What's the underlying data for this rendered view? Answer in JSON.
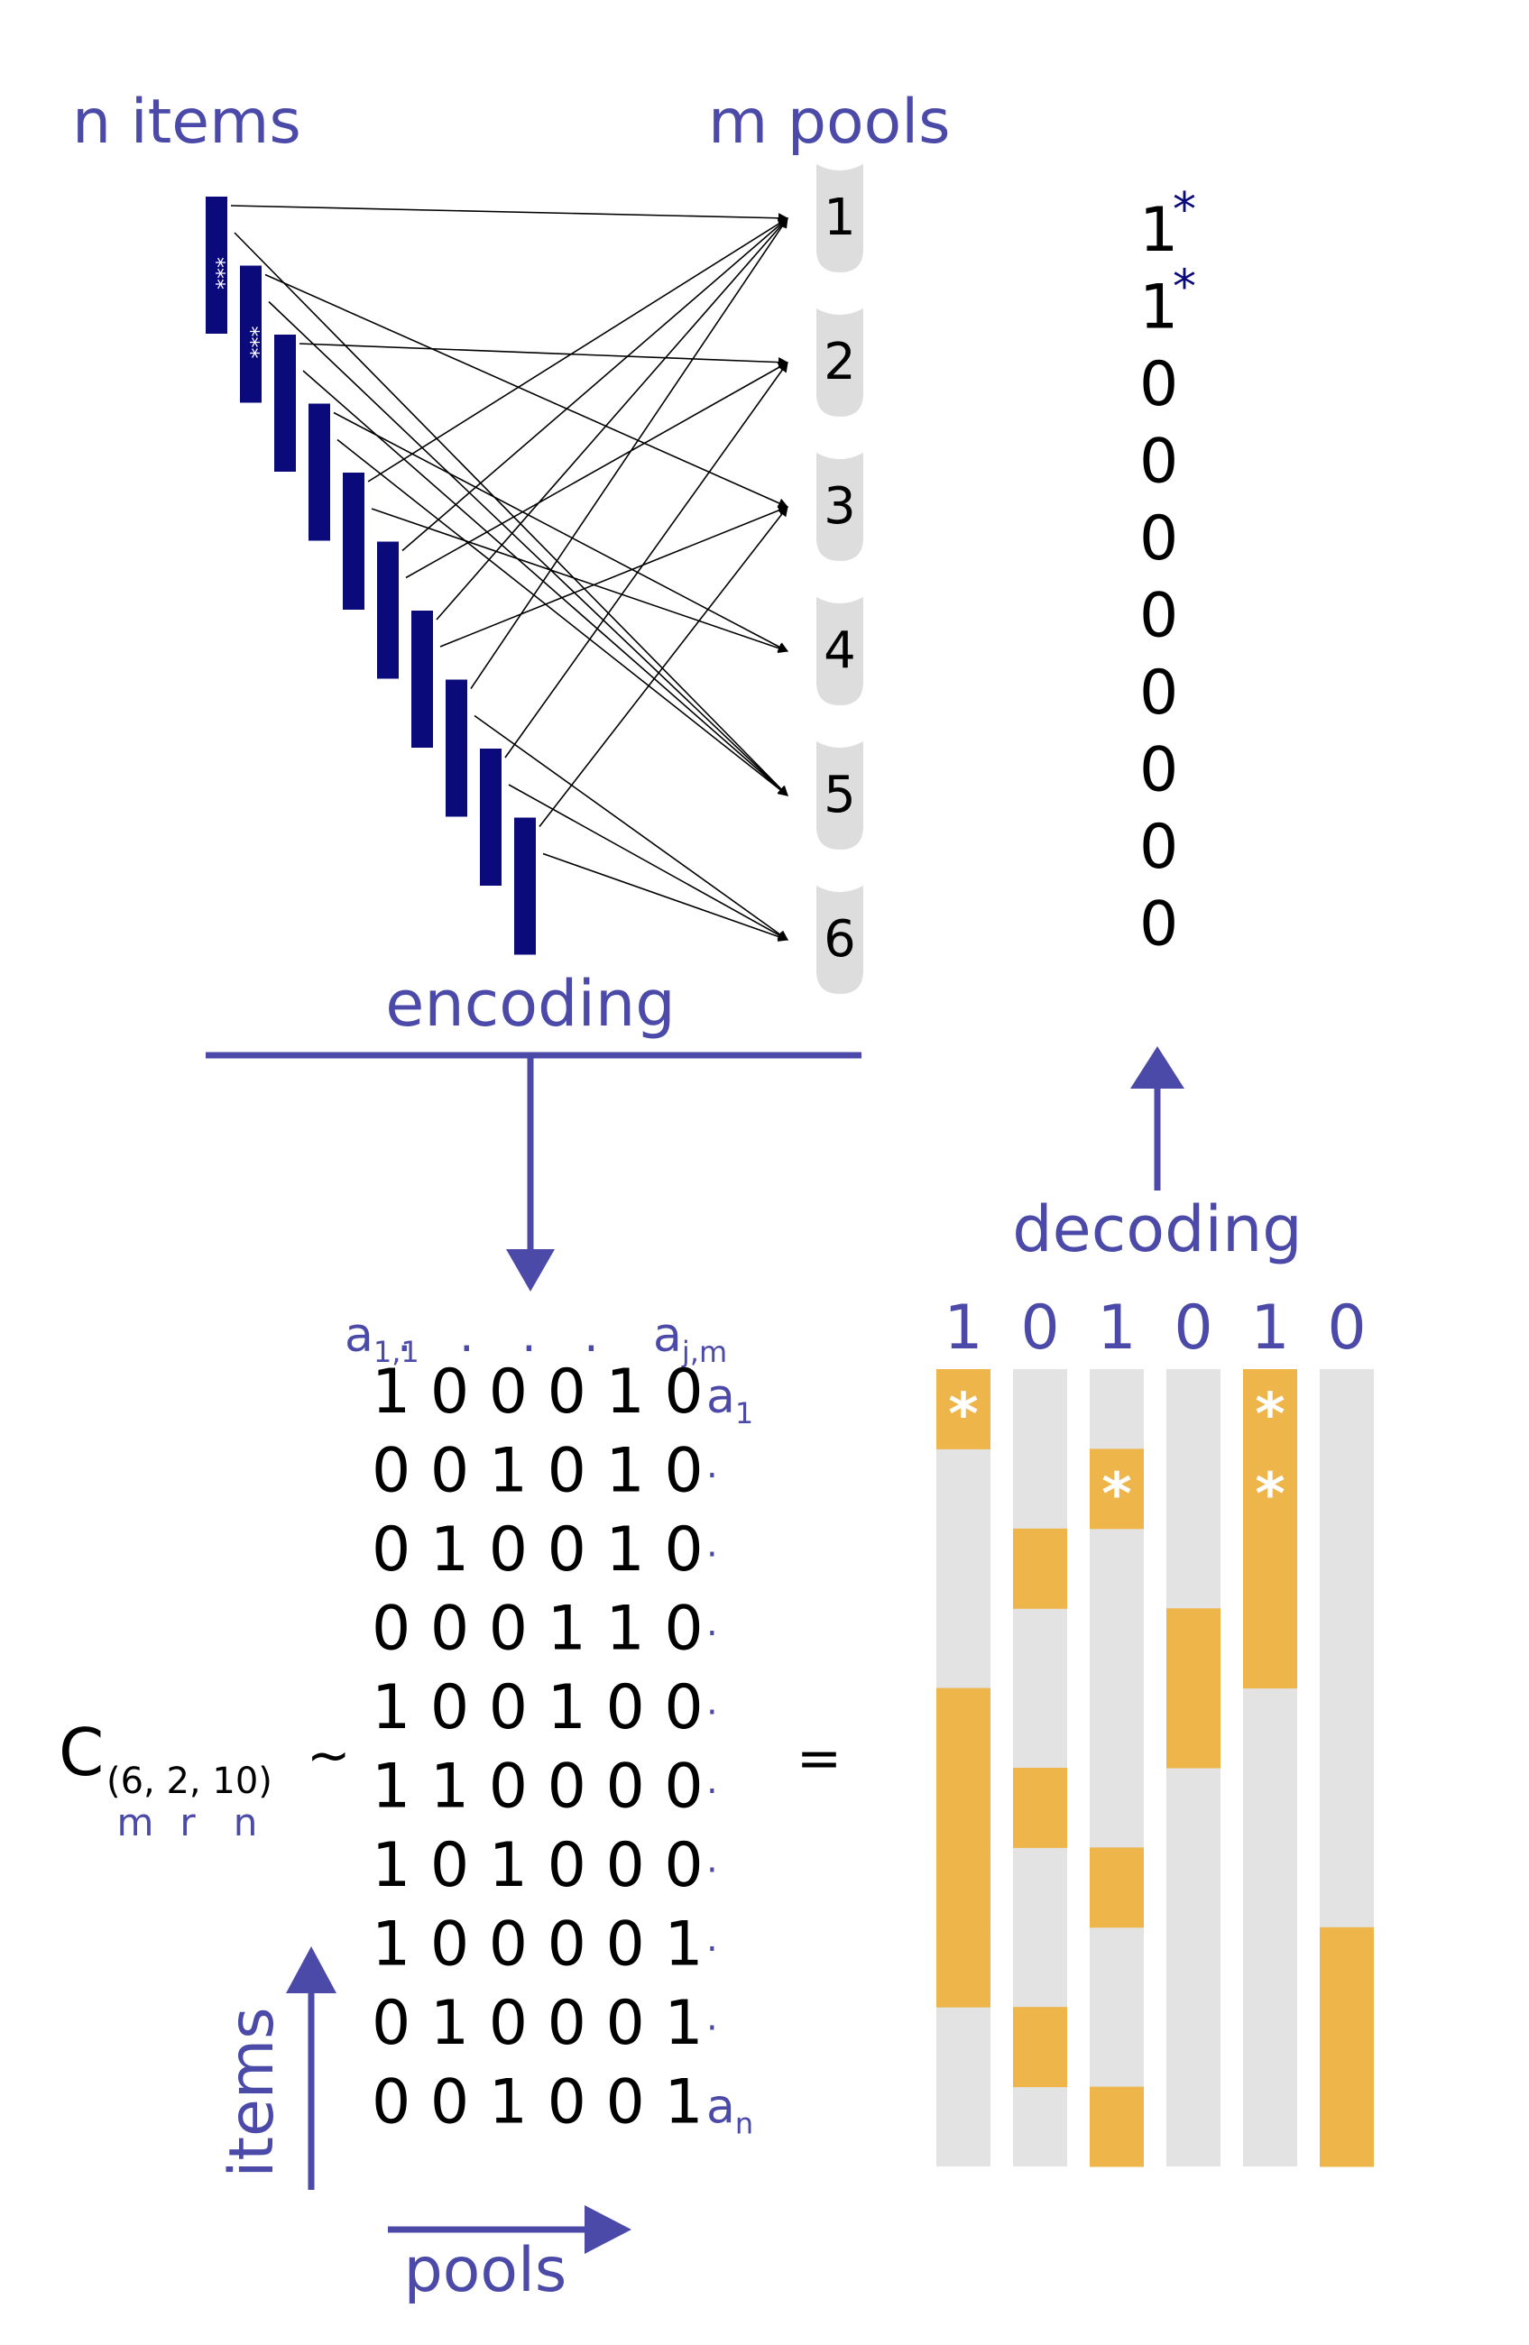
{
  "labels": {
    "n_items": "n items",
    "m_pools": "m pools",
    "encoding": "encoding",
    "decoding": "decoding",
    "items_axis": "items",
    "pools_axis": "pools",
    "equals": "="
  },
  "colors": {
    "item_bar": "#0a0a7a",
    "label": "#4b4aa8",
    "pool": "#dddddd",
    "cell_empty": "#e3e3e3",
    "cell_filled": "#eeb54a",
    "star_in_cell": "#ffffff",
    "star_in_bar": "#ffffff",
    "result_star": "#0a0a7a"
  },
  "pools": [
    "1",
    "2",
    "3",
    "4",
    "5",
    "6"
  ],
  "items_count": 10,
  "positive_item_star": "***",
  "result": [
    {
      "value": "1",
      "star": "*"
    },
    {
      "value": "1",
      "star": "*"
    },
    {
      "value": "0",
      "star": ""
    },
    {
      "value": "0",
      "star": ""
    },
    {
      "value": "0",
      "star": ""
    },
    {
      "value": "0",
      "star": ""
    },
    {
      "value": "0",
      "star": ""
    },
    {
      "value": "0",
      "star": ""
    },
    {
      "value": "0",
      "star": ""
    },
    {
      "value": "0",
      "star": ""
    }
  ],
  "matrix": {
    "header_left": "a",
    "header_left_sub": "1,1",
    "header_dots": ". . . .",
    "header_right": "a",
    "header_right_sub": "j,m",
    "rows": [
      "1 0 0 0 1 0",
      "0 0 1 0 1 0",
      "0 1 0 0 1 0",
      "0 0 0 1 1 0",
      "1 0 0 1 0 0",
      "1 1 0 0 0 0",
      "1 0 1 0 0 0",
      "1 0 0 0 0 1",
      "0 1 0 0 0 1",
      "0 0 1 0 0 1"
    ],
    "row_labels": [
      {
        "text": "a",
        "sub": "1"
      },
      {
        "text": "·",
        "sub": ""
      },
      {
        "text": "·",
        "sub": ""
      },
      {
        "text": "·",
        "sub": ""
      },
      {
        "text": "·",
        "sub": ""
      },
      {
        "text": "·",
        "sub": ""
      },
      {
        "text": "·",
        "sub": ""
      },
      {
        "text": "·",
        "sub": ""
      },
      {
        "text": "·",
        "sub": ""
      },
      {
        "text": "a",
        "sub": "n"
      }
    ]
  },
  "code": {
    "symbol": "C",
    "params": "(6, 2, 10)",
    "tilde": "~",
    "param_names": [
      "m",
      "r",
      "n"
    ]
  },
  "pool_results": [
    "1",
    "0",
    "1",
    "0",
    "1",
    "0"
  ],
  "cell_stars": [
    {
      "column": 0,
      "row": 0,
      "star": "*"
    },
    {
      "column": 2,
      "row": 1,
      "star": "*"
    },
    {
      "column": 4,
      "row": 0,
      "star": "*"
    },
    {
      "column": 4,
      "row": 1,
      "star": "*"
    }
  ]
}
